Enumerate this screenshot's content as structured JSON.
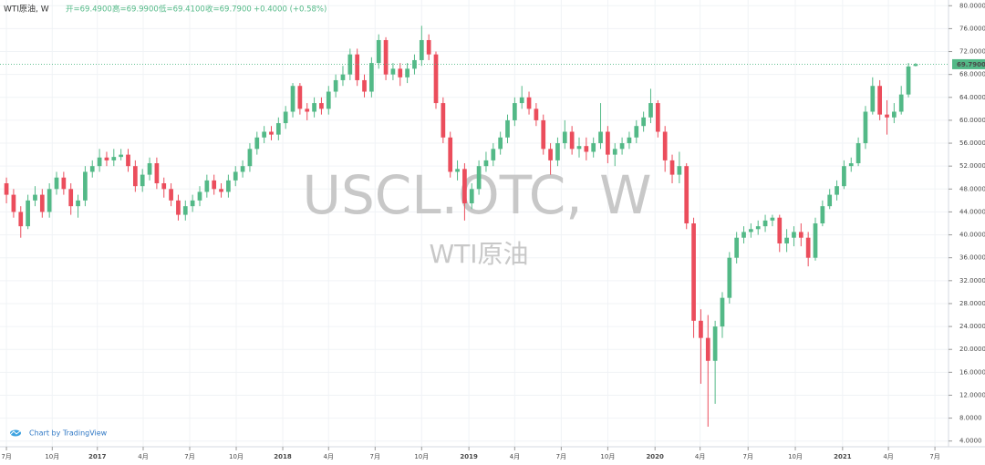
{
  "chart_data": {
    "type": "candlestick",
    "symbol": "WTI原油, W",
    "header": {
      "open": "开=69.4900",
      "high": "高=69.9900",
      "low": "低=69.4100",
      "close": "收=69.7900",
      "change": "+0.4000 (+0.58%)"
    },
    "watermark": "USCL.OTC, W",
    "watermark_sub": "WTI原油",
    "credit": "Chart by TradingView",
    "last_price_label": "69.7900",
    "up_color": "#53b987",
    "down_color": "#eb4d5c",
    "open": [
      49,
      47,
      44,
      41.5,
      46,
      47,
      44,
      48,
      50,
      48,
      45,
      46,
      51,
      52,
      53.5,
      53,
      53.6,
      54,
      52,
      48.5,
      50.5,
      52.5,
      49,
      48,
      46,
      43.5,
      45,
      46,
      47.5,
      49.5,
      48,
      47.5,
      49.5,
      51,
      52,
      55,
      57,
      58,
      57.5,
      59.5,
      61.5,
      66,
      62,
      61.5,
      63,
      62,
      65,
      67,
      68,
      71.5,
      67,
      65,
      70,
      74,
      68,
      69,
      67.5,
      69,
      70.5,
      74,
      71.5,
      63,
      57,
      51,
      51.5,
      45.5,
      48,
      52,
      53,
      55,
      57,
      60,
      63,
      64,
      62,
      60,
      55,
      53,
      56,
      58,
      55,
      55.5,
      54.5,
      56,
      58,
      54,
      55,
      56,
      57,
      59,
      60.5,
      63,
      58,
      53,
      50.5,
      52,
      42,
      25,
      22,
      18,
      24,
      29,
      36,
      39.5,
      40.5,
      41,
      41.5,
      42.5,
      43,
      38.5,
      39.5,
      40.5,
      39.5,
      36,
      42,
      45,
      47,
      48.5,
      52,
      52.5,
      56,
      61.5,
      66,
      61,
      60.5,
      61.5,
      64.5,
      69.49
    ],
    "high": [
      50,
      48,
      45,
      47,
      48.5,
      48,
      49,
      51,
      51,
      49,
      47,
      52,
      53,
      55,
      54.5,
      55,
      55,
      55,
      53,
      51.5,
      53.5,
      53.5,
      50,
      49,
      47,
      46,
      47,
      48.5,
      50.5,
      50.5,
      49,
      50.5,
      52,
      53,
      56,
      58,
      59,
      59,
      60.5,
      62.5,
      66.5,
      66.5,
      63,
      64,
      64,
      66,
      68,
      69.5,
      72.5,
      72.5,
      68,
      71,
      75,
      74.5,
      70,
      70,
      70,
      71.5,
      76.5,
      75,
      72,
      64,
      58,
      53,
      52.5,
      49,
      53,
      54.5,
      56,
      58,
      61,
      64,
      66,
      65,
      63,
      61,
      56,
      57,
      60,
      59,
      57,
      57,
      57,
      63,
      59,
      56,
      57,
      58,
      60,
      61.5,
      65.5,
      63.5,
      59,
      54,
      54.5,
      52.5,
      43,
      27,
      26,
      25,
      30,
      37,
      40.5,
      41.5,
      42,
      42.5,
      43.5,
      43.5,
      43.5,
      41,
      41.5,
      42,
      40.5,
      43,
      46,
      48,
      49.5,
      53,
      53.5,
      57,
      62.5,
      67.5,
      67,
      63.5,
      63,
      66,
      70,
      69.99
    ],
    "low": [
      45.5,
      43,
      39.5,
      41,
      45,
      43,
      43,
      47,
      47,
      43.5,
      43,
      45,
      50,
      51,
      52,
      52,
      53,
      51,
      47.5,
      47.5,
      49.5,
      48,
      46.5,
      45,
      42.5,
      42.5,
      44,
      45,
      46.5,
      47,
      46.5,
      46.5,
      48.5,
      50,
      51,
      54,
      56,
      56.5,
      56.5,
      58.5,
      60.5,
      61,
      60,
      60.5,
      61,
      61,
      64,
      66,
      67,
      66,
      64,
      64,
      69,
      67,
      67,
      66,
      66.5,
      68,
      69.5,
      70.5,
      62,
      56,
      50,
      49.5,
      42.5,
      44.5,
      47,
      51,
      52,
      54,
      56,
      59,
      62,
      61,
      59,
      54,
      50.5,
      52,
      55,
      54,
      53.5,
      53,
      53.5,
      55,
      52.5,
      52,
      54,
      55,
      56,
      58,
      59.5,
      57,
      51,
      49,
      49,
      41,
      22,
      14,
      6.5,
      10.5,
      22,
      28,
      35,
      38.5,
      39.5,
      40,
      40.5,
      41.5,
      37,
      37,
      38,
      38,
      34.5,
      35.5,
      41.5,
      44.5,
      46,
      48,
      51,
      52,
      55,
      61,
      60,
      57.5,
      59.5,
      61,
      64,
      69.41
    ],
    "close": [
      47,
      44,
      41.5,
      46,
      47,
      44,
      48,
      50,
      48,
      45,
      46,
      51,
      52,
      53.5,
      53,
      53.6,
      54,
      52,
      48.5,
      50.5,
      52.5,
      49,
      48,
      46,
      43.5,
      45,
      46,
      47.5,
      49.5,
      48,
      47.5,
      49.5,
      51,
      52,
      55,
      57,
      58,
      57.5,
      59.5,
      61.5,
      66,
      62,
      61.5,
      63,
      62,
      65,
      67,
      68,
      71.5,
      67,
      65,
      70,
      74,
      68,
      69,
      67.5,
      69,
      70.5,
      74,
      71.5,
      63,
      57,
      51,
      51.5,
      45.5,
      48,
      52,
      53,
      55,
      57,
      60,
      63,
      64,
      62,
      60,
      55,
      53,
      56,
      58,
      55,
      55.5,
      54.5,
      56,
      58,
      54,
      55,
      56,
      57,
      59,
      60.5,
      63,
      58,
      53,
      50.5,
      52,
      42,
      25,
      22,
      18,
      24,
      29,
      36,
      39.5,
      40.5,
      41,
      41.5,
      42.5,
      43,
      38.5,
      39.5,
      40.5,
      39.5,
      36,
      42,
      45,
      47,
      48.5,
      52,
      52.5,
      56,
      61.5,
      66,
      61,
      60.5,
      61.5,
      64.5,
      69.39,
      69.79
    ],
    "xlim": [
      -0.9,
      131.6
    ],
    "xticks": [
      {
        "value": 0,
        "label": "7月"
      },
      {
        "value": 6.4,
        "label": "10月"
      },
      {
        "value": 12.7,
        "label": "2017"
      },
      {
        "value": 19.1,
        "label": "4月"
      },
      {
        "value": 25.6,
        "label": "7月"
      },
      {
        "value": 32.1,
        "label": "10月"
      },
      {
        "value": 38.6,
        "label": "2018"
      },
      {
        "value": 45,
        "label": "4月"
      },
      {
        "value": 51.5,
        "label": "7月"
      },
      {
        "value": 58,
        "label": "10月"
      },
      {
        "value": 64.6,
        "label": "2019"
      },
      {
        "value": 71,
        "label": "4月"
      },
      {
        "value": 77.5,
        "label": "7月"
      },
      {
        "value": 84,
        "label": "10月"
      },
      {
        "value": 90.6,
        "label": "2020"
      },
      {
        "value": 96.9,
        "label": "4月"
      },
      {
        "value": 103.6,
        "label": "7月"
      },
      {
        "value": 110.2,
        "label": "10月"
      },
      {
        "value": 116.8,
        "label": "2021"
      },
      {
        "value": 123.2,
        "label": "4月"
      },
      {
        "value": 129.7,
        "label": "7月"
      }
    ],
    "ylim": [
      3,
      81
    ],
    "yticks": [
      {
        "value": 4,
        "label": "4.0000"
      },
      {
        "value": 8,
        "label": "8.0000"
      },
      {
        "value": 12,
        "label": "12.0000"
      },
      {
        "value": 16,
        "label": "16.0000"
      },
      {
        "value": 20,
        "label": "20.0000"
      },
      {
        "value": 24,
        "label": "24.0000"
      },
      {
        "value": 28,
        "label": "28.0000"
      },
      {
        "value": 32,
        "label": "32.0000"
      },
      {
        "value": 36,
        "label": "36.0000"
      },
      {
        "value": 40,
        "label": "40.0000"
      },
      {
        "value": 44,
        "label": "44.0000"
      },
      {
        "value": 48,
        "label": "48.0000"
      },
      {
        "value": 52,
        "label": "52.0000"
      },
      {
        "value": 56,
        "label": "56.0000"
      },
      {
        "value": 60,
        "label": "60.0000"
      },
      {
        "value": 64,
        "label": "64.0000"
      },
      {
        "value": 68,
        "label": "68.0000"
      },
      {
        "value": 72,
        "label": "72.0000"
      },
      {
        "value": 76,
        "label": "76.0000"
      },
      {
        "value": 80,
        "label": "80.0000"
      }
    ],
    "grid": true
  }
}
